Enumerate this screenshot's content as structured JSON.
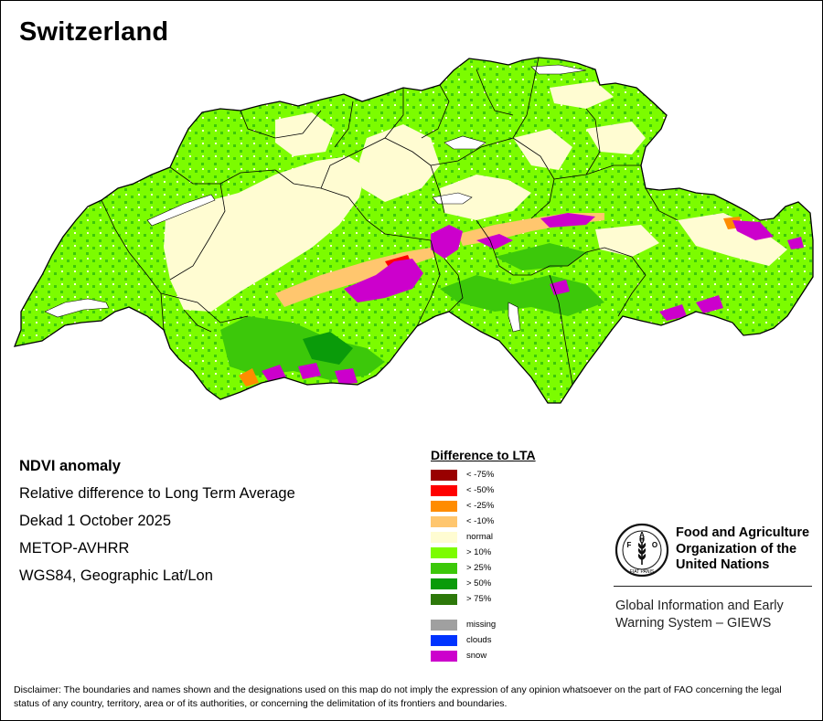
{
  "map": {
    "title": "Switzerland"
  },
  "info": {
    "headline": "NDVI anomaly",
    "lines": [
      "Relative difference to Long Term Average",
      "Dekad 1 October 2025",
      "METOP-AVHRR",
      "WGS84, Geographic Lat/Lon"
    ]
  },
  "legend": {
    "title": "Difference to LTA",
    "items": [
      {
        "label": "< -75%",
        "color": "#990000"
      },
      {
        "label": "< -50%",
        "color": "#ff0000"
      },
      {
        "label": "< -25%",
        "color": "#ff8c00"
      },
      {
        "label": "< -10%",
        "color": "#ffc66e"
      },
      {
        "label": "normal",
        "color": "#fffcd2"
      },
      {
        "label": "> 10%",
        "color": "#7cfc00"
      },
      {
        "label": "> 25%",
        "color": "#3cc80a"
      },
      {
        "label": "> 50%",
        "color": "#0a9b0a"
      },
      {
        "label": "> 75%",
        "color": "#2d780a"
      }
    ],
    "extra_items": [
      {
        "label": "missing",
        "color": "#a0a0a0"
      },
      {
        "label": "clouds",
        "color": "#0033ff"
      },
      {
        "label": "snow",
        "color": "#cc00cc"
      }
    ]
  },
  "fao": {
    "name": "Food and Agriculture\nOrganization of the\nUnited Nations",
    "emblem_letters": [
      "F",
      "A",
      "O"
    ],
    "emblem_motto": "FIAT PANIS",
    "giews": "Global Information and Early\nWarning System – GIEWS"
  },
  "disclaimer": "Disclaimer: The boundaries and names shown and the designations used on this map do not imply the expression of any opinion whatsoever on the part of FAO concerning the legal status of any country, territory, area or of its authorities, or concerning the delimitation of its frontiers and boundaries."
}
